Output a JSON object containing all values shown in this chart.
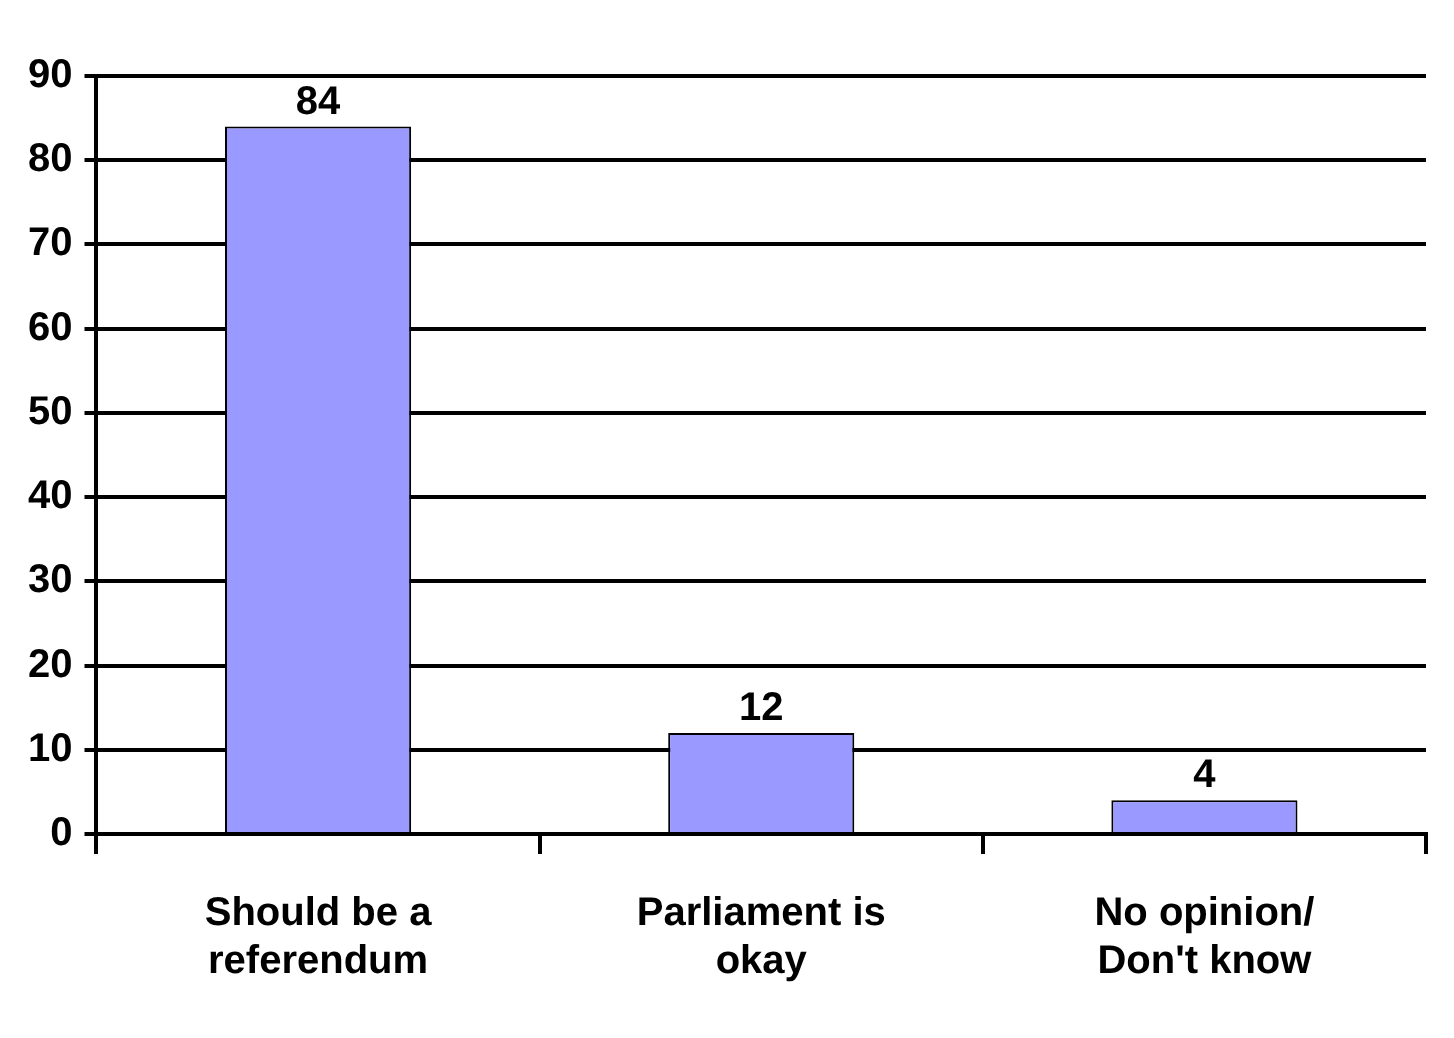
{
  "chart_data": {
    "type": "bar",
    "categories": [
      "Should be a referendum",
      "Parliament is okay",
      "No opinion/ Don't know"
    ],
    "values": [
      84,
      12,
      4
    ],
    "color": "#9999ff",
    "ylim": [
      0,
      90
    ],
    "yticks": [
      0,
      10,
      20,
      30,
      40,
      50,
      60,
      70,
      80,
      90
    ],
    "grid": "y",
    "legend": false,
    "data_labels": true
  }
}
